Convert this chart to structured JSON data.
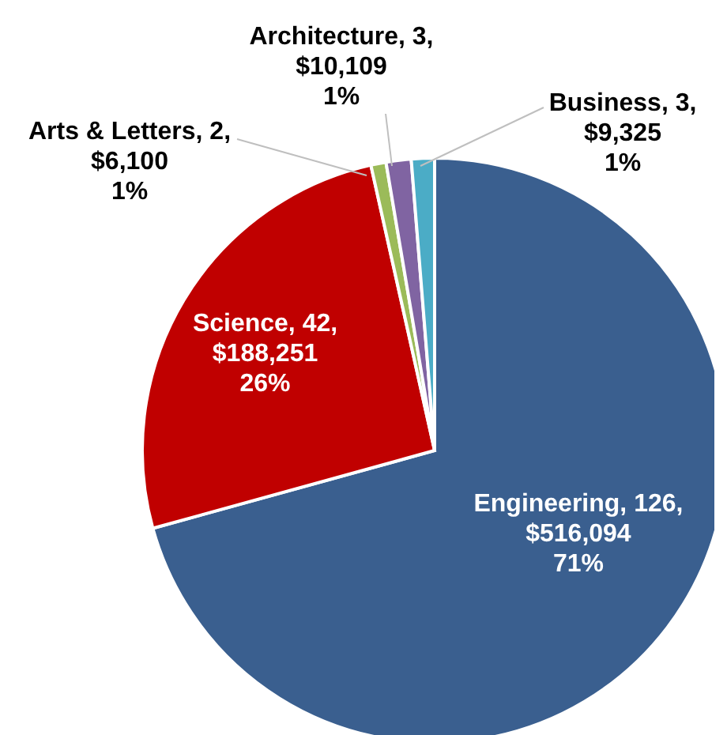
{
  "chart_data": {
    "type": "pie",
    "categories": [
      "Engineering",
      "Science",
      "Arts & Letters",
      "Architecture",
      "Business"
    ],
    "values": [
      516094,
      188251,
      6100,
      10109,
      9325
    ],
    "colors": [
      "#3a5f8f",
      "#c00000",
      "#9bbb59",
      "#8064a2",
      "#4bacc6"
    ],
    "value_labels": [
      "126,\n$516,094\n71%",
      "42,\n$188,251\n26%",
      "2,\n$6,100\n1%",
      "3,\n$10,109\n1%",
      "3,\n$9,325\n1%"
    ]
  }
}
